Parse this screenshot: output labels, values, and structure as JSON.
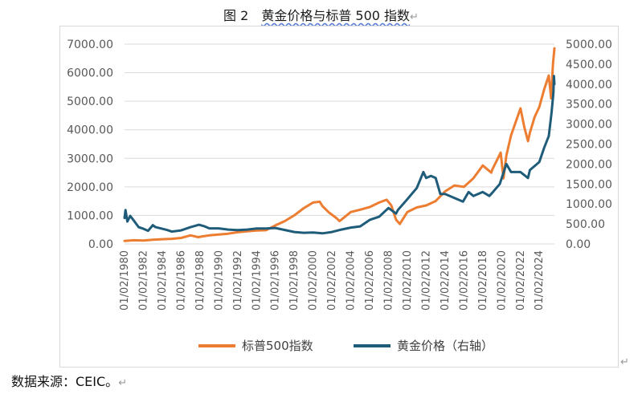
{
  "page": {
    "title_prefix": "图 2　",
    "title_main": "黄金价格与标普 500 指数",
    "source_note": "数据来源：CEIC。",
    "return_mark": "↵"
  },
  "colors": {
    "sp500": "#ED7D31",
    "gold": "#1F5C7A",
    "grid": "#d9d9d9",
    "text": "#595959"
  },
  "chart_data": {
    "type": "line",
    "title": "",
    "grid": true,
    "legend": "bottom",
    "x_ticks": [
      "01/02/1980",
      "01/02/1982",
      "01/02/1984",
      "01/02/1986",
      "01/02/1988",
      "01/02/1990",
      "01/02/1992",
      "01/02/1994",
      "01/02/1996",
      "01/02/1998",
      "01/02/2000",
      "01/02/2002",
      "01/02/2004",
      "01/02/2006",
      "01/02/2008",
      "01/02/2010",
      "01/02/2012",
      "01/02/2014",
      "01/02/2016",
      "01/02/2018",
      "01/02/2020",
      "01/02/2022",
      "01/02/2024"
    ],
    "x_range": [
      1980,
      2025.6
    ],
    "y_left": {
      "ticks": [
        "0.00",
        "1000.00",
        "2000.00",
        "3000.00",
        "4000.00",
        "5000.00",
        "6000.00",
        "7000.00"
      ],
      "range": [
        0,
        7000
      ]
    },
    "y_right": {
      "ticks": [
        "0.00",
        "500.00",
        "1000.00",
        "1500.00",
        "2000.00",
        "2500.00",
        "3000.00",
        "3500.00",
        "4000.00",
        "4500.00",
        "5000.00"
      ],
      "range": [
        0,
        5000
      ]
    },
    "series": [
      {
        "name": "标普500指数",
        "axis": "left",
        "points": [
          [
            1980.0,
            106
          ],
          [
            1981.0,
            130
          ],
          [
            1982.0,
            120
          ],
          [
            1983.0,
            145
          ],
          [
            1984.0,
            165
          ],
          [
            1985.0,
            180
          ],
          [
            1986.0,
            210
          ],
          [
            1987.0,
            300
          ],
          [
            1987.8,
            240
          ],
          [
            1988.0,
            250
          ],
          [
            1989.0,
            300
          ],
          [
            1990.0,
            330
          ],
          [
            1991.0,
            360
          ],
          [
            1992.0,
            410
          ],
          [
            1993.0,
            440
          ],
          [
            1994.0,
            470
          ],
          [
            1995.0,
            480
          ],
          [
            1996.0,
            650
          ],
          [
            1997.0,
            800
          ],
          [
            1998.0,
            1000
          ],
          [
            1999.0,
            1250
          ],
          [
            2000.0,
            1450
          ],
          [
            2000.7,
            1480
          ],
          [
            2001.0,
            1320
          ],
          [
            2001.7,
            1100
          ],
          [
            2002.5,
            900
          ],
          [
            2002.8,
            800
          ],
          [
            2003.0,
            850
          ],
          [
            2004.0,
            1120
          ],
          [
            2005.0,
            1200
          ],
          [
            2006.0,
            1290
          ],
          [
            2007.0,
            1450
          ],
          [
            2007.8,
            1550
          ],
          [
            2008.3,
            1350
          ],
          [
            2008.8,
            850
          ],
          [
            2009.2,
            700
          ],
          [
            2010.0,
            1120
          ],
          [
            2011.0,
            1280
          ],
          [
            2012.0,
            1350
          ],
          [
            2013.0,
            1500
          ],
          [
            2014.0,
            1840
          ],
          [
            2015.0,
            2050
          ],
          [
            2016.0,
            2000
          ],
          [
            2017.0,
            2300
          ],
          [
            2018.0,
            2750
          ],
          [
            2018.9,
            2500
          ],
          [
            2019.0,
            2600
          ],
          [
            2019.9,
            3200
          ],
          [
            2020.2,
            2300
          ],
          [
            2020.5,
            3100
          ],
          [
            2021.0,
            3800
          ],
          [
            2022.0,
            4750
          ],
          [
            2022.4,
            4100
          ],
          [
            2022.8,
            3600
          ],
          [
            2023.0,
            3900
          ],
          [
            2023.5,
            4450
          ],
          [
            2024.0,
            4800
          ],
          [
            2024.5,
            5400
          ],
          [
            2025.0,
            5900
          ],
          [
            2025.25,
            5100
          ],
          [
            2025.45,
            6300
          ],
          [
            2025.6,
            6850
          ]
        ]
      },
      {
        "name": "黄金价格（右轴）",
        "axis": "right",
        "points": [
          [
            1980.0,
            650
          ],
          [
            1980.1,
            850
          ],
          [
            1980.3,
            560
          ],
          [
            1980.6,
            700
          ],
          [
            1981.0,
            580
          ],
          [
            1981.5,
            420
          ],
          [
            1982.0,
            380
          ],
          [
            1982.5,
            330
          ],
          [
            1983.0,
            470
          ],
          [
            1983.3,
            420
          ],
          [
            1984.0,
            380
          ],
          [
            1984.5,
            350
          ],
          [
            1985.0,
            310
          ],
          [
            1986.0,
            340
          ],
          [
            1987.0,
            420
          ],
          [
            1987.9,
            480
          ],
          [
            1988.5,
            440
          ],
          [
            1989.0,
            390
          ],
          [
            1990.0,
            390
          ],
          [
            1991.0,
            360
          ],
          [
            1992.0,
            345
          ],
          [
            1993.0,
            360
          ],
          [
            1994.0,
            385
          ],
          [
            1995.0,
            385
          ],
          [
            1996.0,
            400
          ],
          [
            1997.0,
            350
          ],
          [
            1998.0,
            300
          ],
          [
            1999.0,
            280
          ],
          [
            2000.0,
            285
          ],
          [
            2001.0,
            265
          ],
          [
            2002.0,
            300
          ],
          [
            2003.0,
            360
          ],
          [
            2004.0,
            410
          ],
          [
            2005.0,
            440
          ],
          [
            2006.0,
            600
          ],
          [
            2007.0,
            680
          ],
          [
            2008.0,
            900
          ],
          [
            2008.8,
            760
          ],
          [
            2009.0,
            850
          ],
          [
            2010.0,
            1120
          ],
          [
            2011.0,
            1400
          ],
          [
            2011.7,
            1800
          ],
          [
            2012.0,
            1650
          ],
          [
            2012.5,
            1700
          ],
          [
            2013.0,
            1650
          ],
          [
            2013.5,
            1250
          ],
          [
            2014.0,
            1250
          ],
          [
            2015.0,
            1150
          ],
          [
            2015.9,
            1060
          ],
          [
            2016.5,
            1300
          ],
          [
            2017.0,
            1200
          ],
          [
            2018.0,
            1300
          ],
          [
            2018.7,
            1200
          ],
          [
            2019.0,
            1280
          ],
          [
            2019.8,
            1500
          ],
          [
            2020.5,
            2000
          ],
          [
            2021.0,
            1800
          ],
          [
            2022.0,
            1800
          ],
          [
            2022.8,
            1650
          ],
          [
            2023.0,
            1850
          ],
          [
            2023.5,
            1950
          ],
          [
            2024.0,
            2050
          ],
          [
            2024.5,
            2400
          ],
          [
            2025.0,
            2700
          ],
          [
            2025.3,
            3300
          ],
          [
            2025.5,
            3800
          ],
          [
            2025.55,
            4200
          ],
          [
            2025.6,
            4000
          ]
        ]
      }
    ]
  }
}
